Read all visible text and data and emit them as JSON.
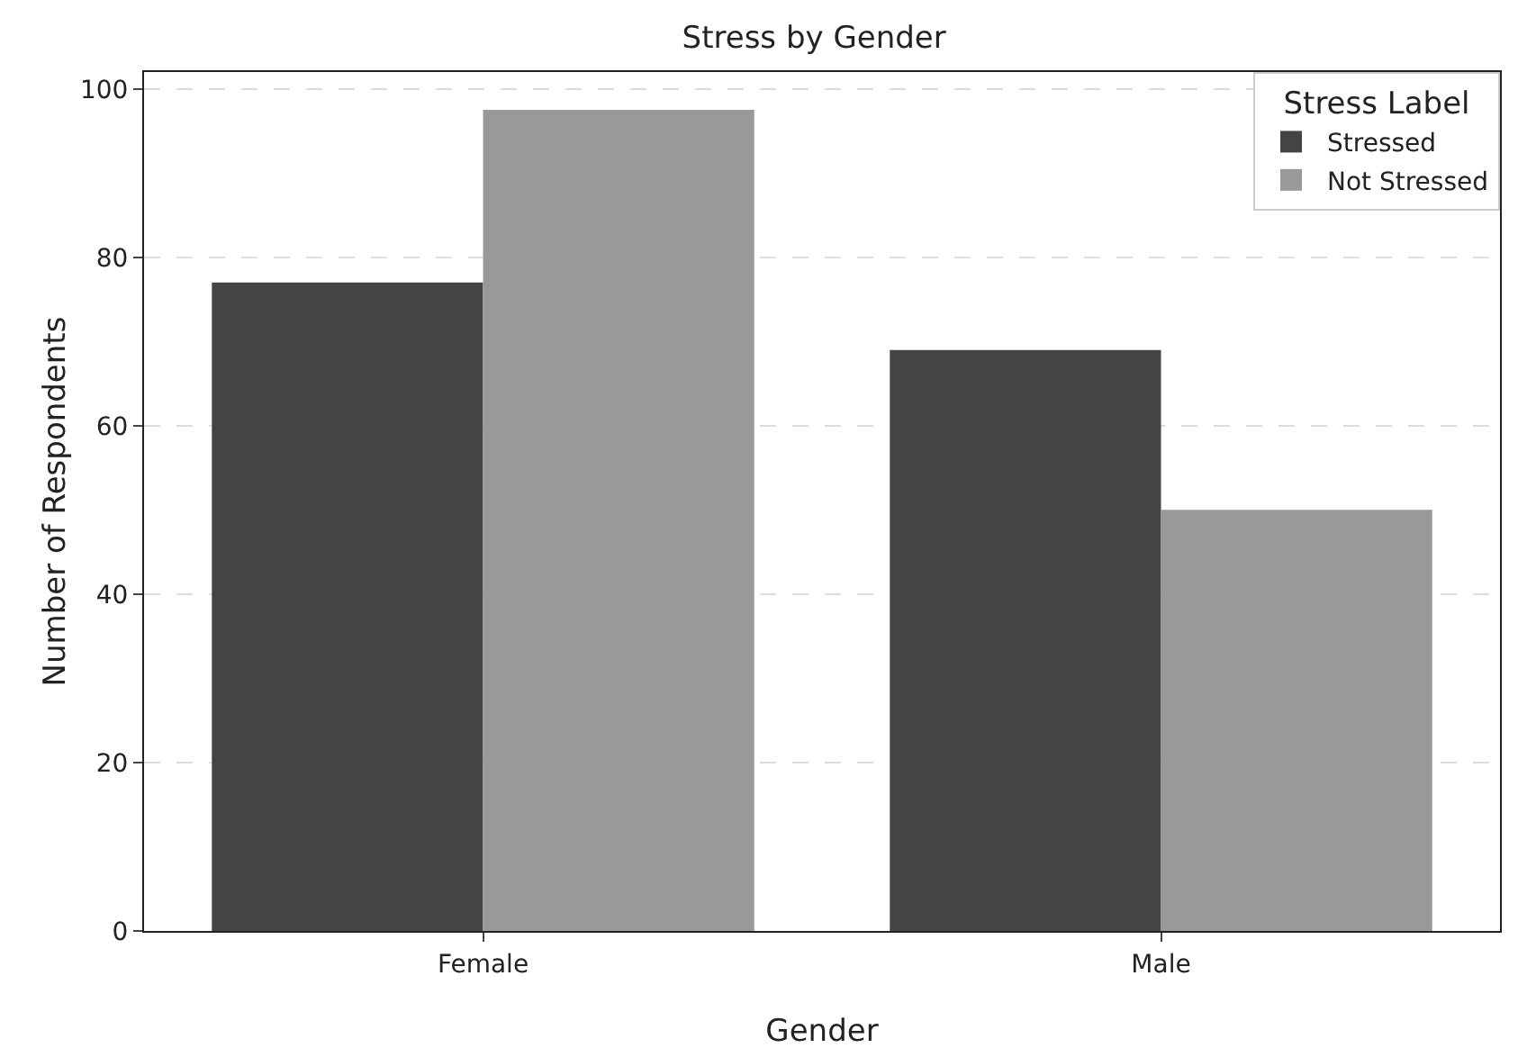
{
  "chart_data": {
    "type": "bar",
    "title": "Stress by Gender",
    "xlabel": "Gender",
    "ylabel": "Number of Respondents",
    "legend_title": "Stress Label",
    "categories": [
      "Female",
      "Male"
    ],
    "series": [
      {
        "name": "Stressed",
        "color": "#444444",
        "values": [
          77,
          69
        ]
      },
      {
        "name": "Not Stressed",
        "color": "#999999",
        "values": [
          97.5,
          50
        ]
      }
    ],
    "ylim": [
      0,
      102
    ],
    "yticks": [
      0,
      20,
      40,
      60,
      80,
      100
    ],
    "grid": "y",
    "legend": "top right"
  }
}
